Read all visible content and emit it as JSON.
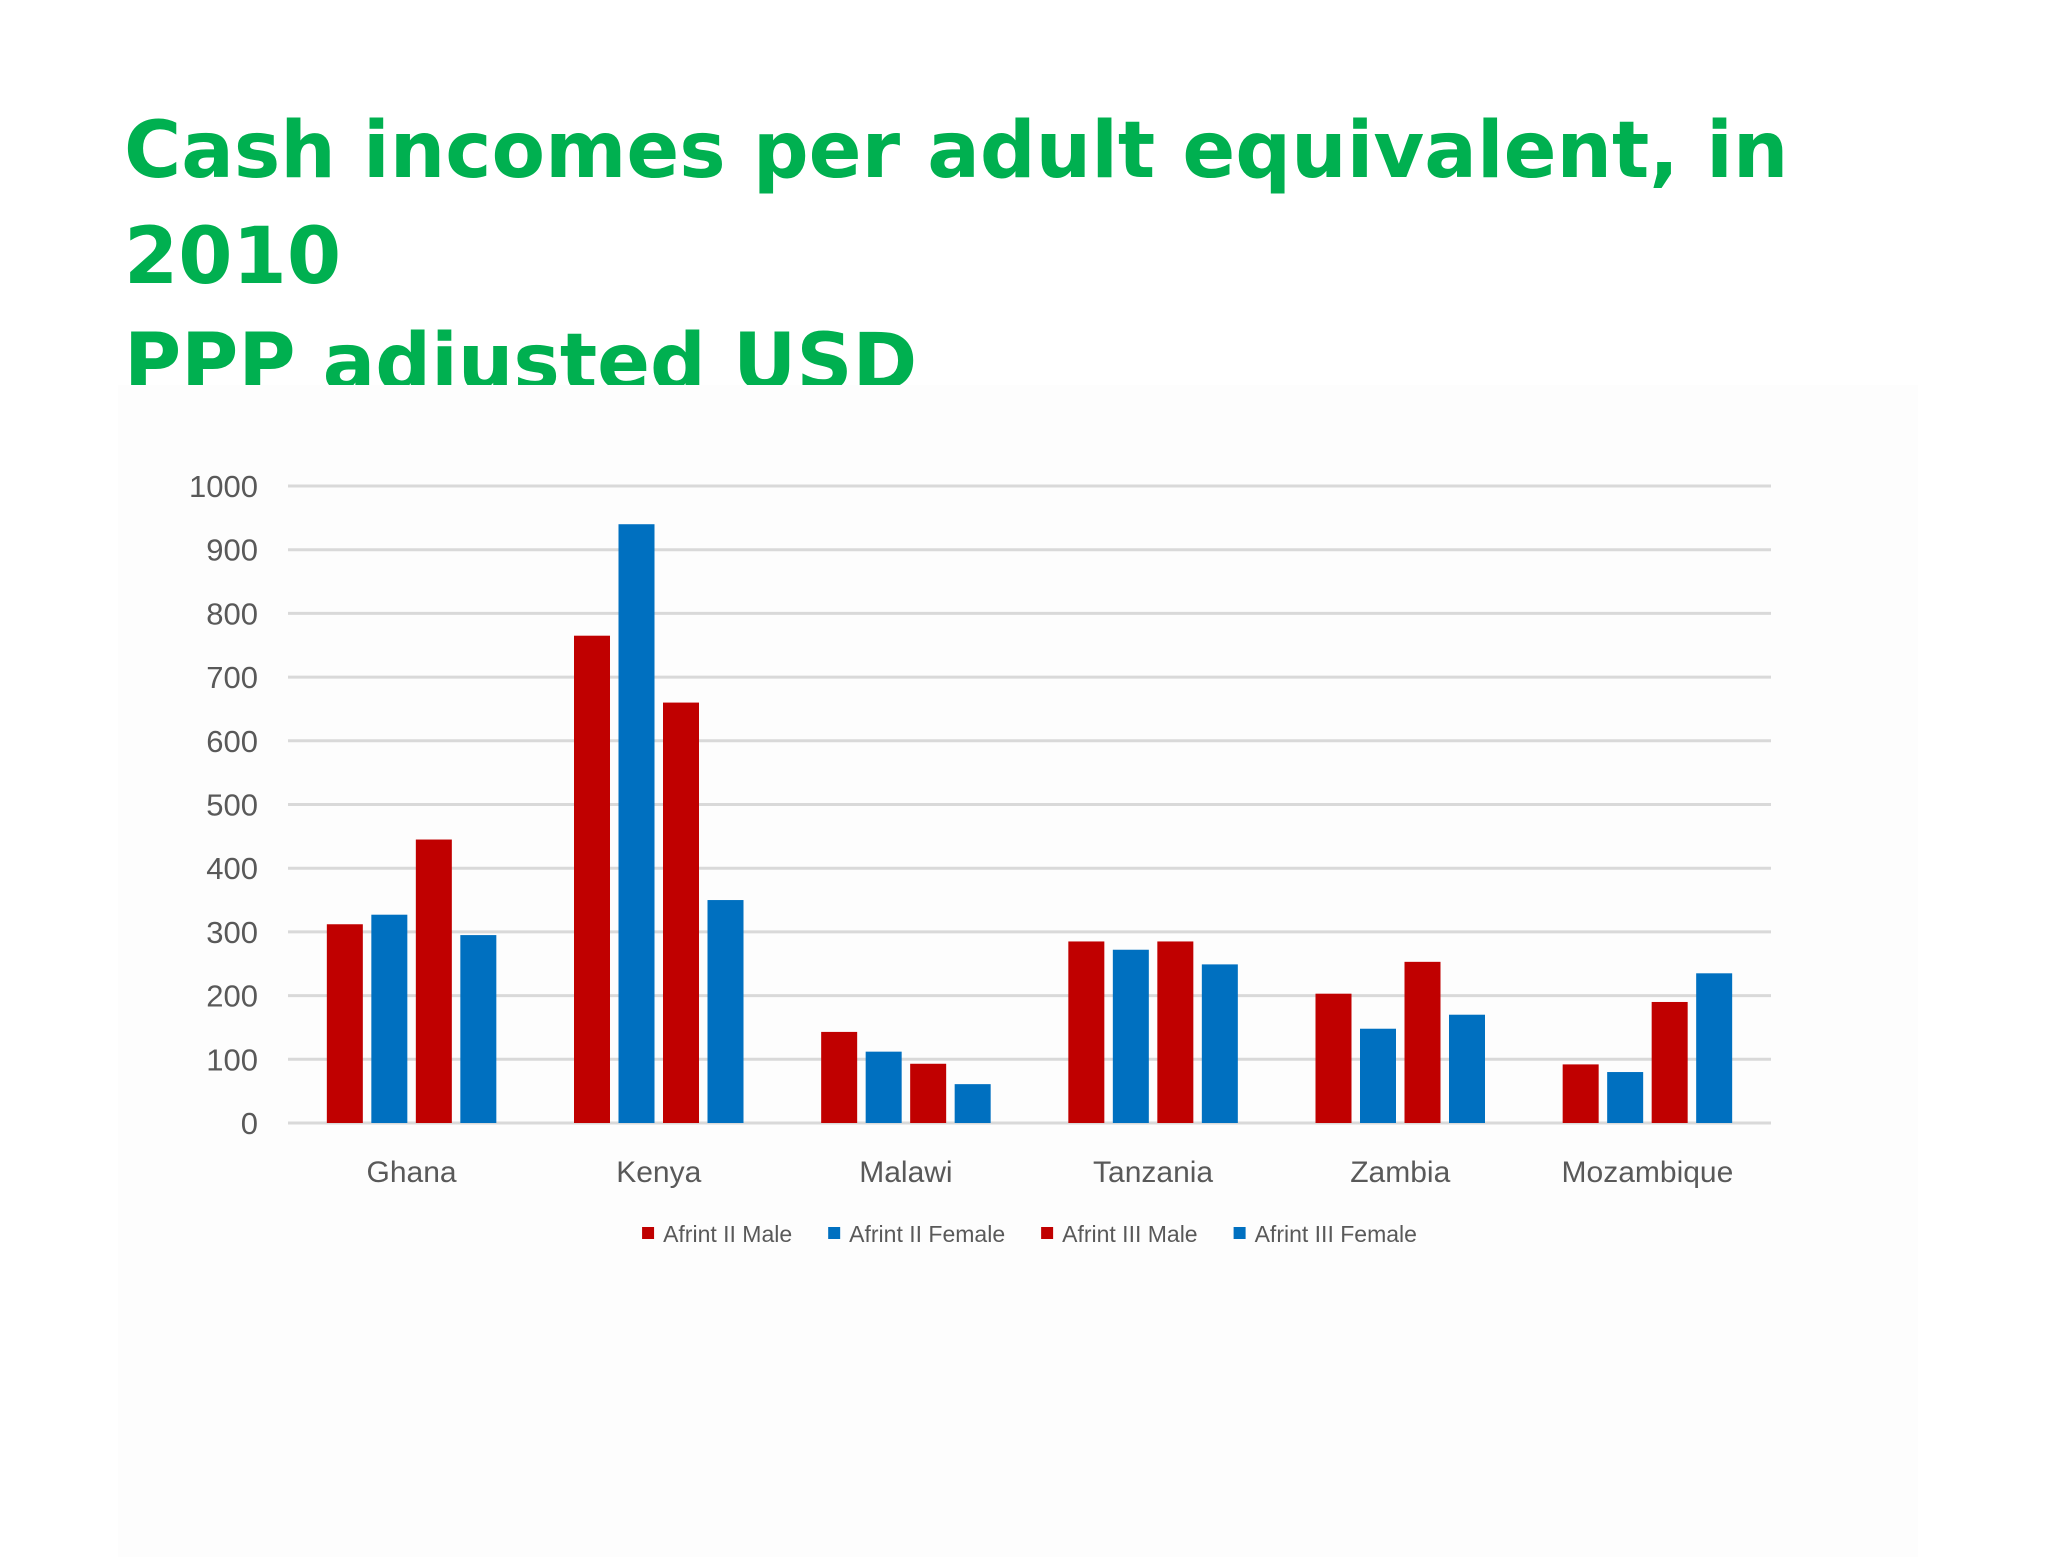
{
  "header": {
    "title_line1": "Cash incomes per adult equivalent, in 2010",
    "title_line2": "PPP adjusted USD"
  },
  "colors": {
    "title": "#00b050",
    "male": "#c00000",
    "female": "#0070c0",
    "gridline": "#d9d9d9",
    "axis_text": "#595959"
  },
  "chart_data": {
    "type": "bar",
    "title": "Cash incomes per adult equivalent, in 2010 PPP adjusted USD",
    "xlabel": "",
    "ylabel": "",
    "ylim": [
      0,
      1000
    ],
    "yticks": [
      0,
      100,
      200,
      300,
      400,
      500,
      600,
      700,
      800,
      900,
      1000
    ],
    "grid": true,
    "legend_position": "bottom",
    "categories": [
      "Ghana",
      "Kenya",
      "Malawi",
      "Tanzania",
      "Zambia",
      "Mozambique"
    ],
    "series": [
      {
        "name": "Afrint II Male",
        "color": "#c00000",
        "values": [
          312,
          765,
          143,
          285,
          203,
          92
        ]
      },
      {
        "name": "Afrint II Female",
        "color": "#0070c0",
        "values": [
          327,
          940,
          112,
          272,
          148,
          80
        ]
      },
      {
        "name": "Afrint III Male",
        "color": "#c00000",
        "values": [
          445,
          660,
          93,
          285,
          253,
          190
        ]
      },
      {
        "name": "Afrint III Female",
        "color": "#0070c0",
        "values": [
          295,
          350,
          61,
          249,
          170,
          235
        ]
      }
    ]
  }
}
